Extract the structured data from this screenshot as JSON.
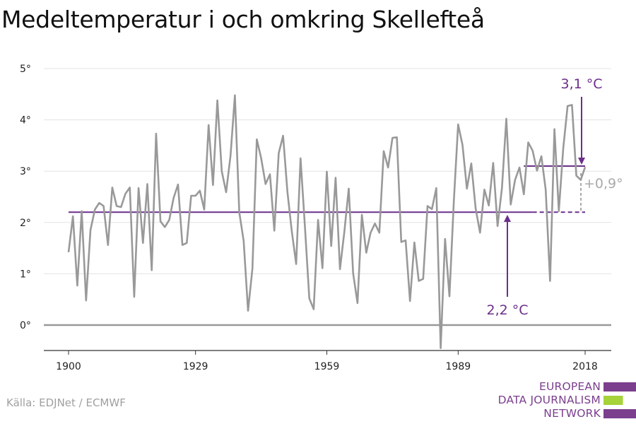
{
  "chart_data": {
    "type": "line",
    "title": "Medeltemperatur i och omkring Skellefteå",
    "xlabel": "",
    "ylabel": "",
    "x_ticks": [
      1900,
      1929,
      1959,
      1989,
      2018
    ],
    "y_ticks": [
      0,
      1,
      2,
      3,
      4,
      5
    ],
    "y_tick_labels": [
      "0°",
      "1°",
      "2°",
      "3°",
      "4°",
      "5°"
    ],
    "xlim": [
      1900,
      2018
    ],
    "ylim": [
      -0.5,
      5.2
    ],
    "grid": true,
    "series": [
      {
        "x": [
          1900,
          1901,
          1902,
          1903,
          1904,
          1905,
          1906,
          1907,
          1908,
          1909,
          1910,
          1911,
          1912,
          1913,
          1914,
          1915,
          1916,
          1917,
          1918,
          1919,
          1920,
          1921,
          1922,
          1923,
          1924,
          1925,
          1926,
          1927,
          1928,
          1929,
          1930,
          1931,
          1932,
          1933,
          1934,
          1935,
          1936,
          1937,
          1938,
          1939,
          1940,
          1941,
          1942,
          1943,
          1944,
          1945,
          1946,
          1947,
          1948,
          1949,
          1950,
          1951,
          1952,
          1953,
          1954,
          1955,
          1956,
          1957,
          1958,
          1959,
          1960,
          1961,
          1962,
          1963,
          1964,
          1965,
          1966,
          1967,
          1968,
          1969,
          1970,
          1971,
          1972,
          1973,
          1974,
          1975,
          1976,
          1977,
          1978,
          1979,
          1980,
          1981,
          1982,
          1983,
          1984,
          1985,
          1986,
          1987,
          1988,
          1989,
          1990,
          1991,
          1992,
          1993,
          1994,
          1995,
          1996,
          1997,
          1998,
          1999,
          2000,
          2001,
          2002,
          2003,
          2004,
          2005,
          2006,
          2007,
          2008,
          2009,
          2010,
          2011,
          2012,
          2013,
          2014,
          2015,
          2016,
          2017,
          2018
        ],
        "values": [
          1.42,
          2.12,
          0.77,
          2.22,
          0.48,
          1.85,
          2.25,
          2.38,
          2.32,
          1.56,
          2.68,
          2.32,
          2.3,
          2.56,
          2.68,
          0.55,
          2.67,
          1.6,
          2.75,
          1.07,
          3.73,
          2.02,
          1.91,
          2.05,
          2.48,
          2.74,
          1.56,
          1.6,
          2.52,
          2.52,
          2.62,
          2.25,
          3.9,
          2.73,
          4.38,
          3.0,
          2.59,
          3.3,
          4.48,
          2.2,
          1.64,
          0.28,
          1.1,
          3.62,
          3.25,
          2.75,
          2.94,
          1.84,
          3.35,
          3.69,
          2.6,
          1.83,
          1.19,
          3.25,
          1.92,
          0.52,
          0.31,
          2.05,
          1.11,
          2.99,
          1.54,
          2.87,
          1.09,
          1.82,
          2.66,
          1.01,
          0.43,
          2.15,
          1.41,
          1.8,
          1.98,
          1.8,
          3.39,
          3.07,
          3.65,
          3.66,
          1.62,
          1.65,
          0.47,
          1.61,
          0.86,
          0.9,
          2.32,
          2.26,
          2.67,
          -0.45,
          1.68,
          0.56,
          2.41,
          3.91,
          3.51,
          2.66,
          3.15,
          2.27,
          1.8,
          2.64,
          2.33,
          3.16,
          1.93,
          2.67,
          4.02,
          2.35,
          2.83,
          3.07,
          2.55,
          3.56,
          3.4,
          3.01,
          3.29,
          2.64,
          0.86,
          3.82,
          2.22,
          3.44,
          4.27,
          4.29,
          2.91,
          2.83,
          3.08
        ]
      }
    ],
    "reference_lines": [
      {
        "label": "2,2 °C",
        "value": 2.2,
        "x_start": 1900,
        "x_end": 2018
      },
      {
        "label": "3,1 °C",
        "value": 3.1,
        "x_start": 2004,
        "x_end": 2018
      }
    ],
    "difference_label": "+0,9°",
    "colors": {
      "series": "#999999",
      "reference": "#6b2f8a",
      "difference": "#aaaaaa",
      "grid": "#e3e3e3",
      "zero_line": "#999999",
      "axis": "#333333"
    }
  },
  "source": "Källa: EDJNet / ECMWF",
  "logo": {
    "lines": [
      "EUROPEAN",
      "DATA JOURNALISM",
      "NETWORK"
    ],
    "colors": [
      "#7b3f8e",
      "#a6d23a",
      "#7b3f8e"
    ]
  }
}
